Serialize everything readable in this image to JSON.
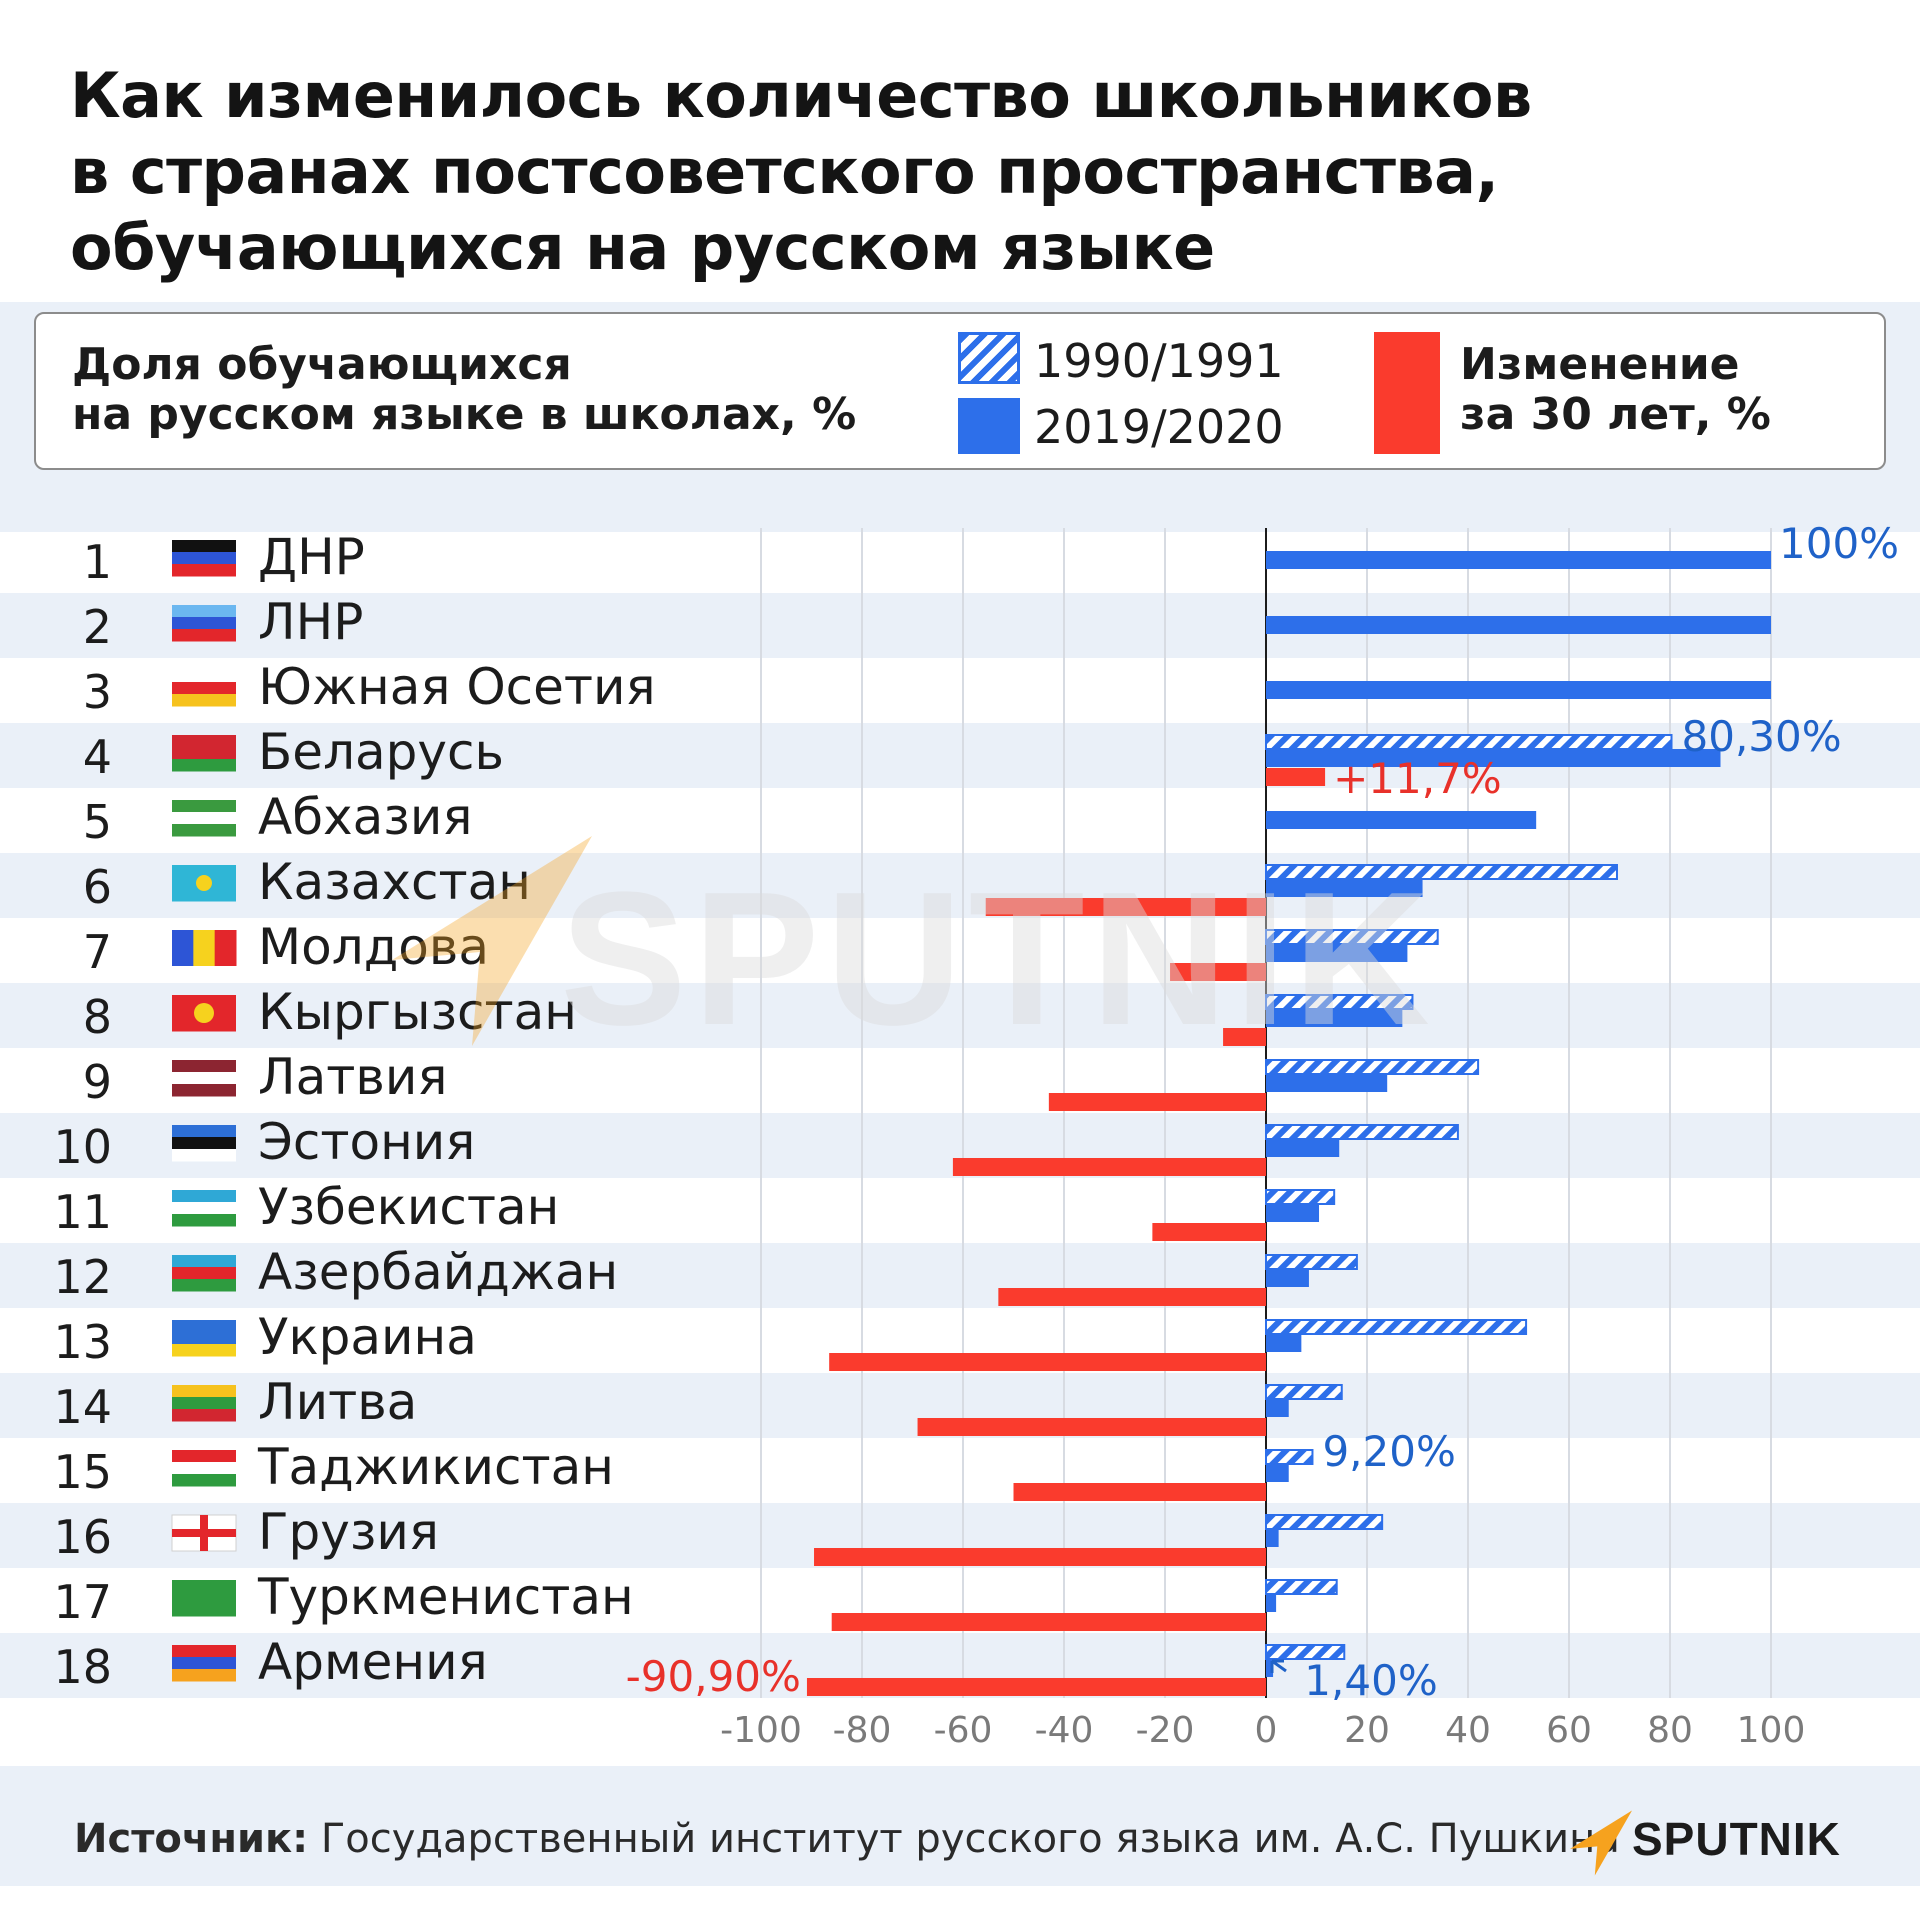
{
  "title": "Как изменилось количество школьников\nв странах постсоветского пространства,\nобучающихся на русском языке",
  "legend": {
    "measure": "Доля обучающихся\nна русском языке в школах, %",
    "series_1990": "1990/1991",
    "series_2019": "2019/2020",
    "series_change": "Изменение\nза 30 лет, %"
  },
  "colors": {
    "blue": "#2d6fea",
    "red": "#fa3b2d",
    "label_blue": "#1f62c8",
    "label_red": "#e8312a"
  },
  "chart_data": {
    "type": "bar",
    "orientation": "horizontal",
    "categories": [
      "ДНР",
      "ЛНР",
      "Южная Осетия",
      "Беларусь",
      "Абхазия",
      "Казахстан",
      "Молдова",
      "Кыргызстан",
      "Латвия",
      "Эстония",
      "Узбекистан",
      "Азербайджан",
      "Украина",
      "Литва",
      "Таджикистан",
      "Грузия",
      "Туркменистан",
      "Армения"
    ],
    "ranks": [
      "1",
      "2",
      "3",
      "4",
      "5",
      "6",
      "7",
      "8",
      "9",
      "10",
      "11",
      "12",
      "13",
      "14",
      "15",
      "16",
      "17",
      "18"
    ],
    "flag_icons": [
      "flag-dnr-icon",
      "flag-lnr-icon",
      "flag-south-ossetia-icon",
      "flag-belarus-icon",
      "flag-abkhazia-icon",
      "flag-kazakhstan-icon",
      "flag-moldova-icon",
      "flag-kyrgyzstan-icon",
      "flag-latvia-icon",
      "flag-estonia-icon",
      "flag-uzbekistan-icon",
      "flag-azerbaijan-icon",
      "flag-ukraine-icon",
      "flag-lithuania-icon",
      "flag-tajikistan-icon",
      "flag-georgia-icon",
      "flag-turkmenistan-icon",
      "flag-armenia-icon"
    ],
    "series": [
      {
        "name": "1990/1991",
        "style": "hatched",
        "values": [
          null,
          null,
          null,
          80.3,
          null,
          69.5,
          34,
          29,
          42,
          38,
          13.5,
          18,
          51.5,
          15,
          9.2,
          23,
          14,
          15.5
        ]
      },
      {
        "name": "2019/2020",
        "style": "solid",
        "values": [
          100,
          100,
          100,
          90,
          53.5,
          31,
          28,
          27,
          24,
          14.5,
          10.5,
          8.5,
          7,
          4.5,
          4.5,
          2.5,
          2,
          1.4
        ]
      },
      {
        "name": "Изменение за 30 лет, %",
        "style": "solid-red",
        "values": [
          null,
          null,
          null,
          11.7,
          null,
          -55.5,
          -19,
          -8.5,
          -43,
          -62,
          -22.5,
          -53,
          -86.5,
          -69,
          -50,
          -89.5,
          -86,
          -90.9
        ]
      }
    ],
    "data_labels": [
      {
        "row": 0,
        "series": 1,
        "text": "100%"
      },
      {
        "row": 3,
        "series": 0,
        "text": "80,30%"
      },
      {
        "row": 3,
        "series": 2,
        "text": "+11,7%"
      },
      {
        "row": 14,
        "series": 0,
        "text": "9,20%"
      },
      {
        "row": 17,
        "series": 1,
        "text": "1,40%"
      },
      {
        "row": 17,
        "series": 2,
        "text": "-90,90%"
      }
    ],
    "x_ticks": [
      -100,
      -80,
      -60,
      -40,
      -20,
      0,
      20,
      40,
      60,
      80,
      100
    ],
    "x_tick_labels": [
      "-100",
      "-80",
      "-60",
      "-40",
      "-20",
      "0",
      "20",
      "40",
      "60",
      "80",
      "100"
    ],
    "xlim": [
      -100,
      100
    ],
    "grid": true
  },
  "watermark": "SPUTNIK",
  "source": {
    "label": "Источник:",
    "text": "Государственный институт русского языка им. А.С. Пушкина"
  },
  "logo": {
    "text": "SPUTNIK",
    "icon": "sputnik-logo-icon"
  }
}
